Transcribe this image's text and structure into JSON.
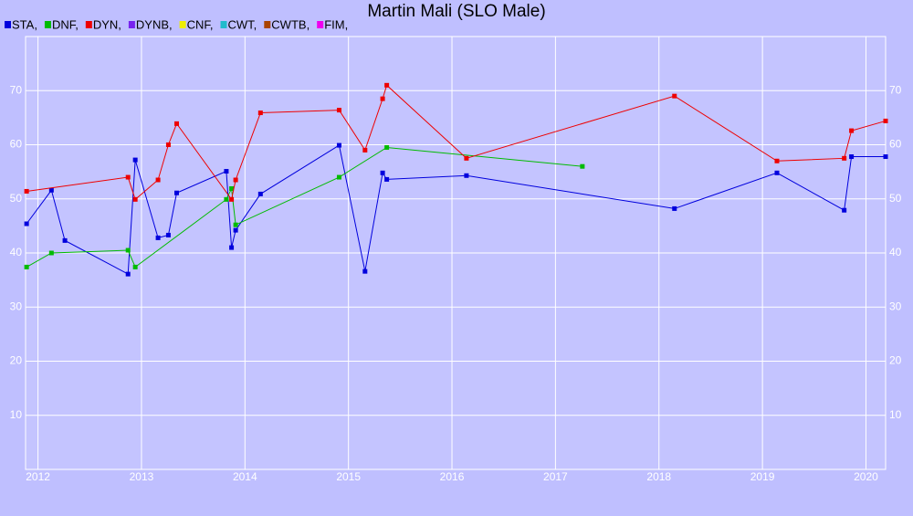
{
  "chart_data": {
    "type": "line",
    "title": "Martin Mali (SLO Male)",
    "xlim": [
      2011.88,
      2020.19
    ],
    "xticks": [
      2012,
      2013,
      2014,
      2015,
      2016,
      2017,
      2018,
      2019,
      2020
    ],
    "ylim": [
      0,
      80
    ],
    "yticks": [
      10,
      20,
      30,
      40,
      50,
      60,
      70
    ],
    "grid": true,
    "series": [
      {
        "name": "STA,",
        "color": "#0000dd",
        "x": [
          2011.89,
          2012.13,
          2012.26,
          2012.87,
          2012.94,
          2013.16,
          2013.26,
          2013.34,
          2013.82,
          2013.87,
          2013.91,
          2014.15,
          2014.91,
          2015.16,
          2015.33,
          2015.37,
          2016.14,
          2018.15,
          2019.14,
          2019.79,
          2019.86,
          2020.19
        ],
        "values": [
          45.4,
          51.6,
          42.3,
          36.1,
          57.2,
          42.8,
          43.3,
          51.1,
          55.1,
          41.0,
          44.2,
          50.9,
          59.9,
          36.6,
          54.8,
          53.6,
          54.3,
          48.2,
          54.8,
          47.9,
          57.8,
          57.8
        ]
      },
      {
        "name": "DNF,",
        "color": "#00bb00",
        "x": [
          2011.89,
          2012.13,
          2012.87,
          2012.94,
          2013.82,
          2013.87,
          2013.91,
          2014.91,
          2015.37,
          2017.26
        ],
        "values": [
          37.4,
          40.0,
          40.5,
          37.4,
          49.9,
          51.9,
          45.2,
          54.0,
          59.5,
          56.0
        ]
      },
      {
        "name": "DYN,",
        "color": "#ee0000",
        "x": [
          2011.89,
          2012.87,
          2012.94,
          2013.16,
          2013.26,
          2013.34,
          2013.87,
          2013.91,
          2014.15,
          2014.91,
          2015.16,
          2015.33,
          2015.37,
          2016.14,
          2018.15,
          2019.14,
          2019.79,
          2019.86,
          2020.19
        ],
        "values": [
          51.4,
          54.0,
          49.9,
          53.5,
          60.0,
          63.9,
          49.9,
          53.5,
          65.9,
          66.4,
          59.0,
          68.5,
          71.0,
          57.5,
          69.0,
          57.0,
          57.5,
          62.6,
          64.4
        ]
      },
      {
        "name": "DYNB,",
        "color": "#7722ee",
        "x": [],
        "values": []
      },
      {
        "name": "CNF,",
        "color": "#eeee00",
        "x": [],
        "values": []
      },
      {
        "name": "CWT,",
        "color": "#22bbcc",
        "x": [],
        "values": []
      },
      {
        "name": "CWTB,",
        "color": "#aa4400",
        "x": [],
        "values": []
      },
      {
        "name": "FIM,",
        "color": "#ee00ee",
        "x": [],
        "values": []
      }
    ]
  }
}
